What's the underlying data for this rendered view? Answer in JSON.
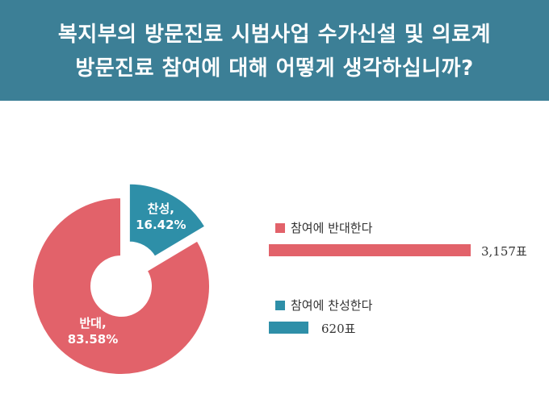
{
  "header": {
    "line1": "복지부의 방문진료 시범사업 수가신설 및 의료계",
    "line2": "방문진료 참여에 대해 어떻게 생각하십니까?"
  },
  "colors": {
    "header_bg": "#3c7f96",
    "oppose": "#e2626a",
    "support": "#2e8fa8"
  },
  "chart_data": [
    {
      "type": "pie",
      "slices": [
        {
          "label": "반대,",
          "percent_label": "83.58%",
          "value": 83.58
        },
        {
          "label": "찬성,",
          "percent_label": "16.42%",
          "value": 16.42
        }
      ]
    },
    {
      "type": "bar",
      "series": [
        {
          "name": "참여에 반대한다",
          "value": 3157,
          "value_label": "3,157표"
        },
        {
          "name": "참여에 찬성한다",
          "value": 620,
          "value_label": "620표"
        }
      ]
    }
  ]
}
